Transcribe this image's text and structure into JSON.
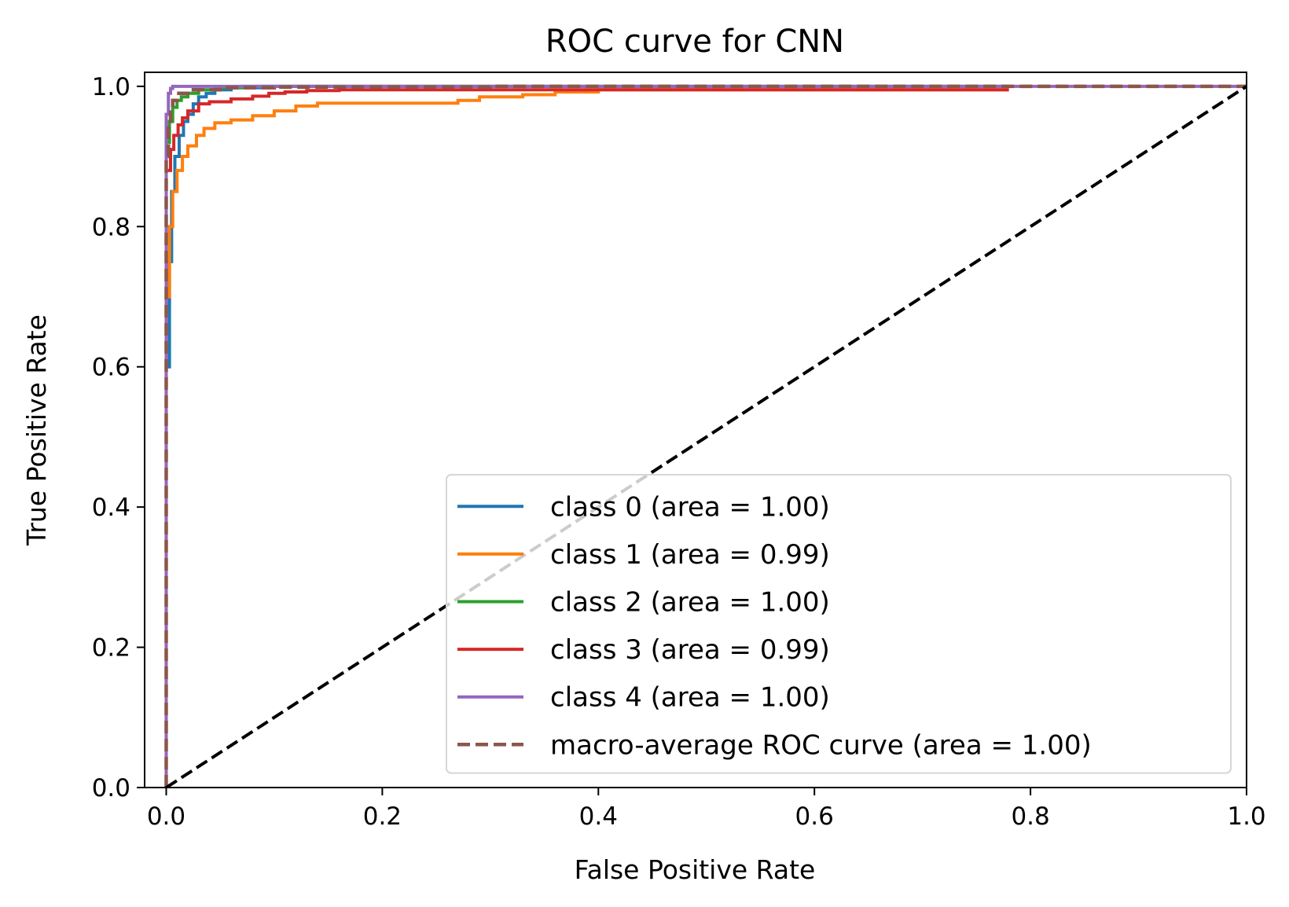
{
  "chart_data": {
    "type": "line",
    "title": "ROC curve for CNN",
    "xlabel": "False Positive Rate",
    "ylabel": "True Positive Rate",
    "xlim": [
      -0.02,
      1.0
    ],
    "ylim": [
      0.0,
      1.02
    ],
    "x_ticks": [
      "0.0",
      "0.2",
      "0.4",
      "0.6",
      "0.8",
      "1.0"
    ],
    "y_ticks": [
      "0.0",
      "0.2",
      "0.4",
      "0.6",
      "0.8",
      "1.0"
    ],
    "x_tick_values": [
      0.0,
      0.2,
      0.4,
      0.6,
      0.8,
      1.0
    ],
    "y_tick_values": [
      0.0,
      0.2,
      0.4,
      0.6,
      0.8,
      1.0
    ],
    "grid": false,
    "legend_position": "lower-right",
    "series": [
      {
        "name": "class 0 (area = 1.00)",
        "color": "#1f77b4",
        "dash": "solid",
        "x": [
          0.0,
          0.0,
          0.003,
          0.005,
          0.008,
          0.012,
          0.016,
          0.02,
          0.025,
          0.03,
          0.037,
          0.045,
          0.06,
          0.09,
          0.15,
          0.3,
          0.5,
          0.78
        ],
        "y": [
          0.0,
          0.6,
          0.75,
          0.85,
          0.9,
          0.93,
          0.95,
          0.96,
          0.975,
          0.985,
          0.99,
          0.995,
          0.998,
          1.0,
          1.0,
          1.0,
          1.0,
          1.0
        ]
      },
      {
        "name": "class 1 (area = 0.99)",
        "color": "#ff7f0e",
        "dash": "solid",
        "x": [
          0.0,
          0.0,
          0.003,
          0.006,
          0.01,
          0.015,
          0.02,
          0.028,
          0.035,
          0.045,
          0.06,
          0.08,
          0.1,
          0.12,
          0.14,
          0.2,
          0.24,
          0.27,
          0.29,
          0.33,
          0.36,
          0.4,
          0.55,
          0.78
        ],
        "y": [
          0.0,
          0.7,
          0.8,
          0.85,
          0.88,
          0.9,
          0.915,
          0.93,
          0.94,
          0.948,
          0.952,
          0.958,
          0.965,
          0.972,
          0.976,
          0.976,
          0.976,
          0.98,
          0.985,
          0.988,
          0.992,
          0.995,
          0.995,
          0.995
        ]
      },
      {
        "name": "class 2 (area = 1.00)",
        "color": "#2ca02c",
        "dash": "solid",
        "x": [
          0.0,
          0.0,
          0.003,
          0.006,
          0.01,
          0.014,
          0.02,
          0.03,
          0.045,
          0.07,
          0.1,
          0.3,
          0.5,
          0.78
        ],
        "y": [
          0.0,
          0.92,
          0.95,
          0.97,
          0.98,
          0.985,
          0.99,
          0.995,
          0.998,
          1.0,
          1.0,
          1.0,
          1.0,
          1.0
        ]
      },
      {
        "name": "class 3 (area = 0.99)",
        "color": "#d62728",
        "dash": "solid",
        "x": [
          0.0,
          0.0,
          0.004,
          0.007,
          0.011,
          0.015,
          0.02,
          0.03,
          0.04,
          0.06,
          0.08,
          0.095,
          0.11,
          0.13,
          0.16,
          0.3,
          0.5,
          0.78
        ],
        "y": [
          0.0,
          0.88,
          0.91,
          0.93,
          0.945,
          0.955,
          0.965,
          0.975,
          0.978,
          0.982,
          0.986,
          0.99,
          0.992,
          0.994,
          0.995,
          0.995,
          0.995,
          0.995
        ]
      },
      {
        "name": "class 4 (area = 1.00)",
        "color": "#9467bd",
        "dash": "solid",
        "x": [
          0.0,
          0.0,
          0.002,
          0.004,
          0.006,
          0.01,
          0.02,
          0.1,
          1.0
        ],
        "y": [
          0.0,
          0.96,
          0.99,
          0.997,
          1.0,
          1.0,
          1.0,
          1.0,
          1.0
        ]
      },
      {
        "name": "macro-average ROC curve (area = 1.00)",
        "color": "#8c564b",
        "dash": "dashed",
        "x": [
          0.0,
          0.0,
          0.002,
          0.004,
          0.006,
          0.01,
          0.02,
          0.05,
          0.1,
          0.3,
          1.0
        ],
        "y": [
          0.0,
          0.9,
          0.95,
          0.97,
          0.98,
          0.99,
          0.995,
          0.998,
          0.999,
          1.0,
          1.0
        ]
      }
    ],
    "reference_line": {
      "color": "#000000",
      "dash": "dashed",
      "x": [
        0.0,
        1.0
      ],
      "y": [
        0.0,
        1.0
      ]
    }
  }
}
